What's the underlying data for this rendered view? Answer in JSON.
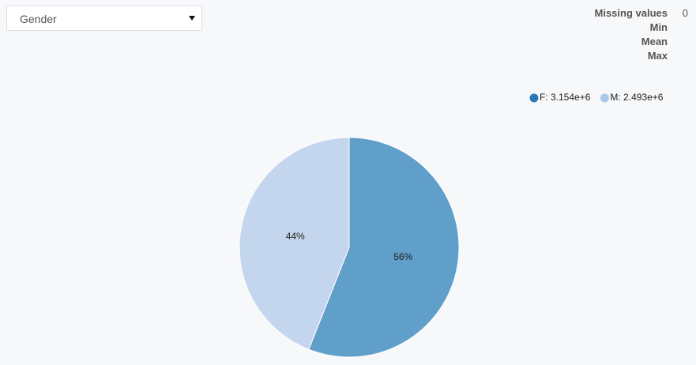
{
  "dropdown": {
    "selected": "Gender"
  },
  "stats": [
    {
      "label": "Missing values",
      "value": 0
    },
    {
      "label": "Min"
    },
    {
      "label": "Mean"
    },
    {
      "label": "Max"
    }
  ],
  "chart_data": {
    "type": "pie",
    "categories": [
      "F",
      "M"
    ],
    "values": [
      56,
      44
    ],
    "value_labels": [
      "56%",
      "44%"
    ],
    "colors": [
      "#5f9fc9",
      "#c4d6ed"
    ],
    "legend_labels": [
      "F: 3.154e+6",
      "M: 2.493e+6"
    ],
    "legend_colors": [
      "#2a78b8",
      "#a9c9e8"
    ]
  }
}
